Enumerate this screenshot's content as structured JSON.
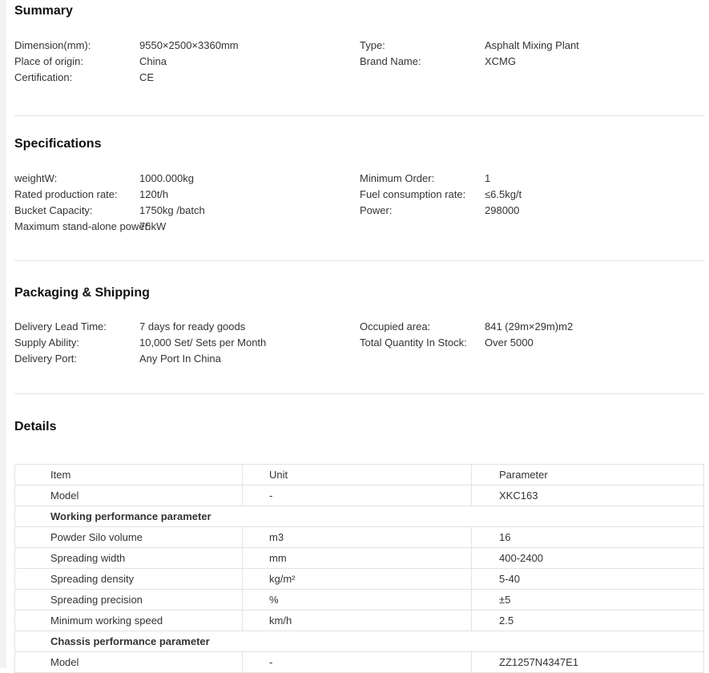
{
  "page": {
    "summary": {
      "title": "Summary",
      "left": [
        {
          "label": "Dimension(mm):",
          "value": "9550×2500×3360mm"
        },
        {
          "label": "Place of origin:",
          "value": "China"
        },
        {
          "label": "Certification:",
          "value": "CE"
        }
      ],
      "right": [
        {
          "label": "Type:",
          "value": "Asphalt Mixing Plant"
        },
        {
          "label": "Brand Name:",
          "value": "XCMG"
        }
      ]
    },
    "specifications": {
      "title": "Specifications",
      "left": [
        {
          "label": "weightW:",
          "value": "1000.000kg"
        },
        {
          "label": "Rated production rate:",
          "value": "120t/h"
        },
        {
          "label": "Bucket Capacity:",
          "value": "1750kg /batch"
        },
        {
          "label": "Maximum stand-alone power:",
          "value": "75kW"
        }
      ],
      "right": [
        {
          "label": "Minimum Order:",
          "value": "1"
        },
        {
          "label": "Fuel consumption rate:",
          "value": "≤6.5kg/t"
        },
        {
          "label": "Power:",
          "value": "298000"
        }
      ]
    },
    "packaging": {
      "title": "Packaging & Shipping",
      "left": [
        {
          "label": "Delivery Lead Time:",
          "value": "7 days for ready goods"
        },
        {
          "label": "Supply Ability:",
          "value": "10,000 Set/ Sets per Month"
        },
        {
          "label": "Delivery Port:",
          "value": "Any Port In China"
        }
      ],
      "right": [
        {
          "label": "Occupied area:",
          "value": "841 (29m×29m)m2"
        },
        {
          "label": "Total Quantity In Stock:",
          "value": "Over 5000"
        }
      ]
    },
    "details": {
      "title": "Details",
      "table": {
        "headers": [
          "Item",
          "Unit",
          "Parameter"
        ],
        "rows": [
          {
            "item": "Model",
            "unit": "-",
            "parameter": "XKC163"
          },
          {
            "section": "Working performance parameter"
          },
          {
            "item": "Powder Silo volume",
            "unit": "m3",
            "parameter": "16"
          },
          {
            "item": "Spreading width",
            "unit": "mm",
            "parameter": "400-2400"
          },
          {
            "item": "Spreading density",
            "unit": "kg/m²",
            "parameter": "5-40"
          },
          {
            "item": "Spreading precision",
            "unit": "%",
            "parameter": "±5"
          },
          {
            "item": "Minimum working speed",
            "unit": "km/h",
            "parameter": "2.5"
          },
          {
            "section": "Chassis performance parameter"
          },
          {
            "item": "Model",
            "unit": "-",
            "parameter": "ZZ1257N4347E1"
          }
        ]
      }
    }
  }
}
